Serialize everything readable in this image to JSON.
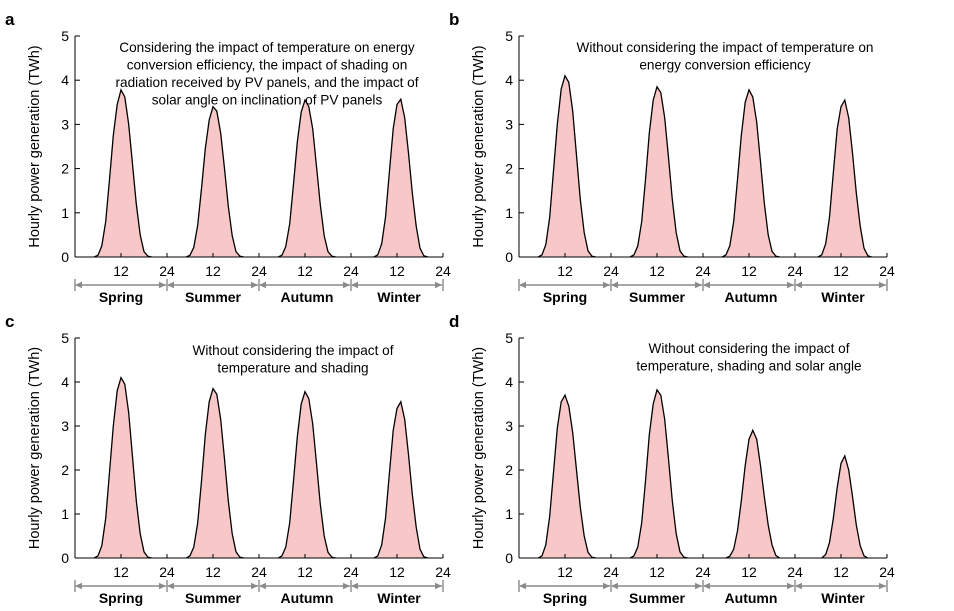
{
  "chart_data": [
    {
      "panel_label": "a",
      "type": "area",
      "ylabel": "Hourly power generation (TWh)",
      "ylim": [
        0,
        5
      ],
      "yticks": [
        "0",
        "1",
        "2",
        "3",
        "4",
        "5"
      ],
      "xtick_labels": [
        "12",
        "24"
      ],
      "seasons": [
        "Spring",
        "Summer",
        "Autumn",
        "Winter"
      ],
      "annotation": [
        "Considering the impact of temperature on energy",
        "conversion efficiency, the impact of shading on",
        "radiation received by PV panels, and the impact of",
        "solar angle on inclination of PV panels"
      ],
      "series": [
        {
          "season": "Spring",
          "x": [
            5,
            6,
            7,
            8,
            9,
            10,
            11,
            12,
            13,
            14,
            15,
            16,
            17,
            18,
            19,
            20
          ],
          "y": [
            0,
            0.04,
            0.25,
            0.8,
            1.75,
            2.75,
            3.45,
            3.78,
            3.62,
            3.0,
            2.1,
            1.2,
            0.5,
            0.12,
            0.02,
            0
          ]
        },
        {
          "season": "Summer",
          "x": [
            5,
            6,
            7,
            8,
            9,
            10,
            11,
            12,
            13,
            14,
            15,
            16,
            17,
            18,
            19,
            20
          ],
          "y": [
            0,
            0.04,
            0.22,
            0.72,
            1.55,
            2.45,
            3.1,
            3.4,
            3.3,
            2.8,
            2.0,
            1.15,
            0.48,
            0.12,
            0.02,
            0
          ]
        },
        {
          "season": "Autumn",
          "x": [
            5,
            6,
            7,
            8,
            9,
            10,
            11,
            12,
            13,
            14,
            15,
            16,
            17,
            18,
            19,
            20
          ],
          "y": [
            0,
            0.04,
            0.24,
            0.75,
            1.65,
            2.6,
            3.28,
            3.55,
            3.4,
            2.9,
            2.05,
            1.18,
            0.48,
            0.12,
            0.02,
            0
          ]
        },
        {
          "season": "Winter",
          "x": [
            6,
            7,
            8,
            9,
            10,
            11,
            12,
            13,
            14,
            15,
            16,
            17,
            18,
            19,
            20
          ],
          "y": [
            0,
            0.05,
            0.3,
            0.9,
            1.9,
            2.9,
            3.45,
            3.57,
            3.15,
            2.35,
            1.45,
            0.7,
            0.2,
            0.03,
            0
          ]
        }
      ]
    },
    {
      "panel_label": "b",
      "type": "area",
      "ylabel": "Hourly power generation (TWh)",
      "ylim": [
        0,
        5
      ],
      "yticks": [
        "0",
        "1",
        "2",
        "3",
        "4",
        "5"
      ],
      "xtick_labels": [
        "12",
        "24"
      ],
      "seasons": [
        "Spring",
        "Summer",
        "Autumn",
        "Winter"
      ],
      "annotation": [
        "Without considering the impact of temperature on",
        "energy conversion efficiency"
      ],
      "series": [
        {
          "season": "Spring",
          "x": [
            5,
            6,
            7,
            8,
            9,
            10,
            11,
            12,
            13,
            14,
            15,
            16,
            17,
            18,
            19,
            20
          ],
          "y": [
            0,
            0.05,
            0.28,
            0.9,
            1.95,
            3.0,
            3.8,
            4.1,
            3.95,
            3.3,
            2.3,
            1.3,
            0.55,
            0.14,
            0.02,
            0
          ]
        },
        {
          "season": "Summer",
          "x": [
            5,
            6,
            7,
            8,
            9,
            10,
            11,
            12,
            13,
            14,
            15,
            16,
            17,
            18,
            19,
            20
          ],
          "y": [
            0,
            0.05,
            0.25,
            0.8,
            1.75,
            2.8,
            3.55,
            3.85,
            3.72,
            3.15,
            2.25,
            1.3,
            0.55,
            0.14,
            0.02,
            0
          ]
        },
        {
          "season": "Autumn",
          "x": [
            5,
            6,
            7,
            8,
            9,
            10,
            11,
            12,
            13,
            14,
            15,
            16,
            17,
            18,
            19,
            20
          ],
          "y": [
            0,
            0.05,
            0.25,
            0.8,
            1.75,
            2.75,
            3.5,
            3.78,
            3.62,
            3.05,
            2.15,
            1.22,
            0.5,
            0.13,
            0.02,
            0
          ]
        },
        {
          "season": "Winter",
          "x": [
            6,
            7,
            8,
            9,
            10,
            11,
            12,
            13,
            14,
            15,
            16,
            17,
            18,
            19,
            20
          ],
          "y": [
            0,
            0.05,
            0.3,
            0.9,
            1.9,
            2.9,
            3.4,
            3.55,
            3.15,
            2.35,
            1.45,
            0.7,
            0.2,
            0.03,
            0
          ]
        }
      ]
    },
    {
      "panel_label": "c",
      "type": "area",
      "ylabel": "Hourly power generation (TWh)",
      "ylim": [
        0,
        5
      ],
      "yticks": [
        "0",
        "1",
        "2",
        "3",
        "4",
        "5"
      ],
      "xtick_labels": [
        "12",
        "24"
      ],
      "seasons": [
        "Spring",
        "Summer",
        "Autumn",
        "Winter"
      ],
      "annotation": [
        "Without considering the impact of",
        "temperature and shading"
      ],
      "series": [
        {
          "season": "Spring",
          "x": [
            5,
            6,
            7,
            8,
            9,
            10,
            11,
            12,
            13,
            14,
            15,
            16,
            17,
            18,
            19,
            20
          ],
          "y": [
            0,
            0.05,
            0.28,
            0.9,
            1.95,
            3.0,
            3.8,
            4.1,
            3.95,
            3.3,
            2.3,
            1.3,
            0.55,
            0.14,
            0.02,
            0
          ]
        },
        {
          "season": "Summer",
          "x": [
            5,
            6,
            7,
            8,
            9,
            10,
            11,
            12,
            13,
            14,
            15,
            16,
            17,
            18,
            19,
            20
          ],
          "y": [
            0,
            0.05,
            0.25,
            0.8,
            1.75,
            2.8,
            3.55,
            3.85,
            3.72,
            3.15,
            2.25,
            1.3,
            0.55,
            0.14,
            0.02,
            0
          ]
        },
        {
          "season": "Autumn",
          "x": [
            5,
            6,
            7,
            8,
            9,
            10,
            11,
            12,
            13,
            14,
            15,
            16,
            17,
            18,
            19,
            20
          ],
          "y": [
            0,
            0.05,
            0.25,
            0.8,
            1.75,
            2.75,
            3.5,
            3.78,
            3.62,
            3.05,
            2.15,
            1.22,
            0.5,
            0.13,
            0.02,
            0
          ]
        },
        {
          "season": "Winter",
          "x": [
            6,
            7,
            8,
            9,
            10,
            11,
            12,
            13,
            14,
            15,
            16,
            17,
            18,
            19,
            20
          ],
          "y": [
            0,
            0.05,
            0.3,
            0.9,
            1.9,
            2.9,
            3.4,
            3.55,
            3.15,
            2.35,
            1.45,
            0.7,
            0.2,
            0.03,
            0
          ]
        }
      ]
    },
    {
      "panel_label": "d",
      "type": "area",
      "ylabel": "Hourly power generation (TWh)",
      "ylim": [
        0,
        5
      ],
      "yticks": [
        "0",
        "1",
        "2",
        "3",
        "4",
        "5"
      ],
      "xtick_labels": [
        "12",
        "24"
      ],
      "seasons": [
        "Spring",
        "Summer",
        "Autumn",
        "Winter"
      ],
      "annotation": [
        "Without considering the impact of",
        "temperature, shading and solar angle"
      ],
      "series": [
        {
          "season": "Spring",
          "x": [
            5,
            6,
            7,
            8,
            9,
            10,
            11,
            12,
            13,
            14,
            15,
            16,
            17,
            18,
            19,
            20
          ],
          "y": [
            0,
            0.05,
            0.3,
            0.95,
            1.95,
            2.95,
            3.55,
            3.7,
            3.45,
            2.85,
            2.0,
            1.15,
            0.5,
            0.13,
            0.02,
            0
          ]
        },
        {
          "season": "Summer",
          "x": [
            5,
            6,
            7,
            8,
            9,
            10,
            11,
            12,
            13,
            14,
            15,
            16,
            17,
            18,
            19,
            20
          ],
          "y": [
            0,
            0.05,
            0.25,
            0.8,
            1.75,
            2.8,
            3.5,
            3.82,
            3.7,
            3.15,
            2.25,
            1.3,
            0.55,
            0.14,
            0.02,
            0
          ]
        },
        {
          "season": "Autumn",
          "x": [
            6,
            7,
            8,
            9,
            10,
            11,
            12,
            13,
            14,
            15,
            16,
            17,
            18,
            19,
            20
          ],
          "y": [
            0,
            0.04,
            0.2,
            0.62,
            1.3,
            2.1,
            2.7,
            2.9,
            2.7,
            2.1,
            1.4,
            0.75,
            0.3,
            0.06,
            0
          ]
        },
        {
          "season": "Winter",
          "x": [
            7,
            8,
            9,
            10,
            11,
            12,
            13,
            14,
            15,
            16,
            17,
            18,
            19
          ],
          "y": [
            0,
            0.08,
            0.35,
            0.9,
            1.6,
            2.15,
            2.32,
            2.0,
            1.4,
            0.75,
            0.28,
            0.05,
            0
          ]
        }
      ]
    }
  ],
  "style": {
    "fill_color": "#f8c8c8",
    "line_color": "#000000",
    "arrow_color": "#8a8a8a"
  }
}
